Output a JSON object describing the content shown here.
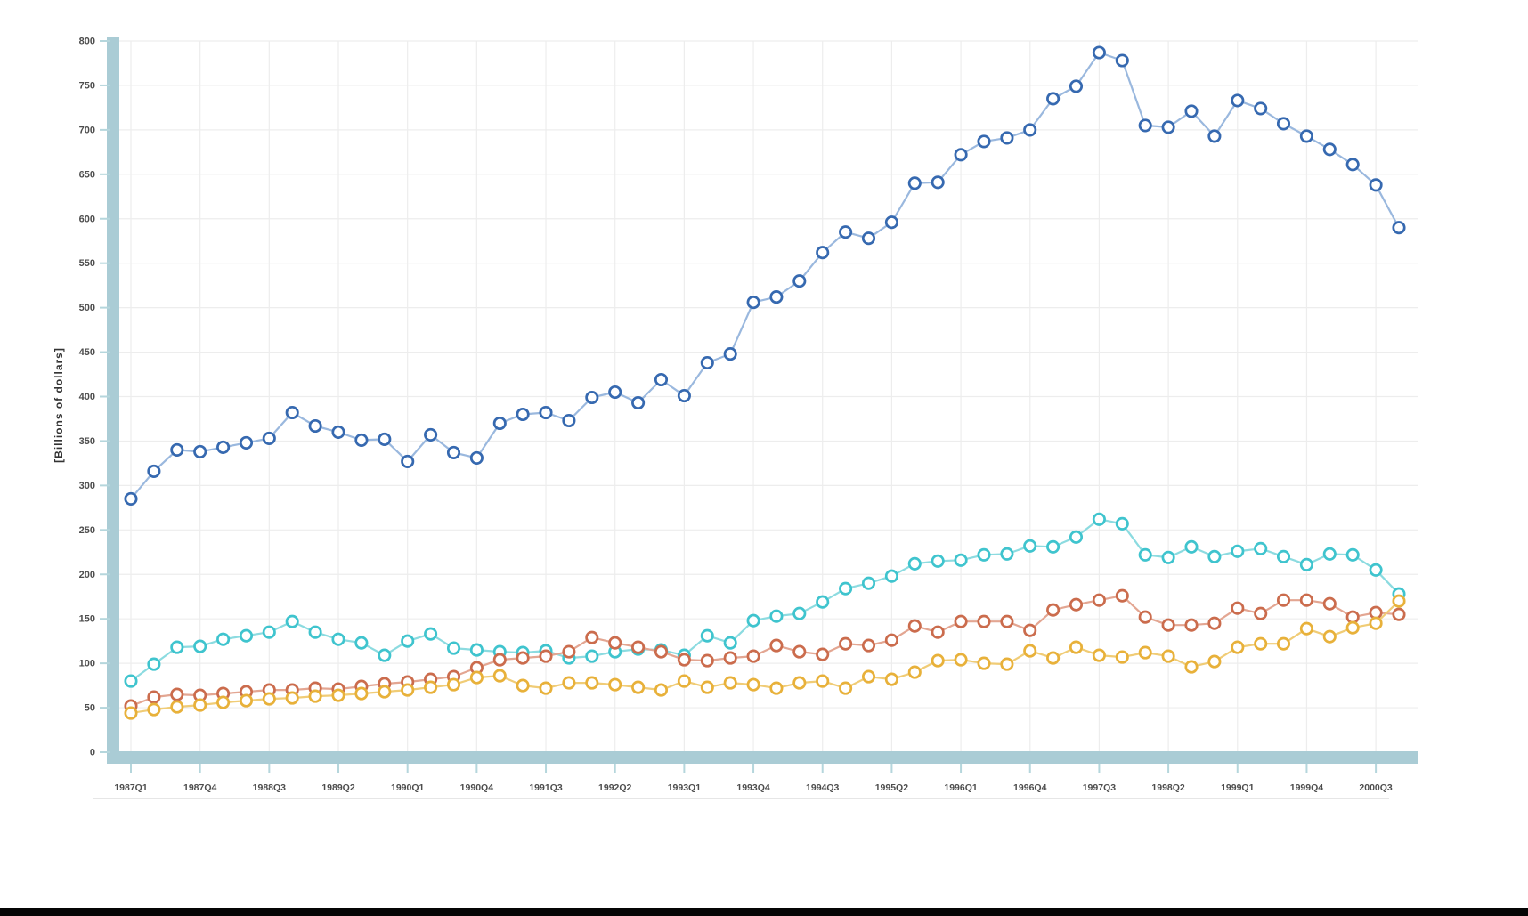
{
  "page": {
    "background": "#ffffff",
    "bottom_bar_color": "#050505"
  },
  "chart_data": {
    "type": "line",
    "title": "",
    "xlabel": "",
    "ylabel": "[Billions of dollars]",
    "ylim": [
      0,
      800
    ],
    "grid": true,
    "legend": "none",
    "marker_style": "open-circle",
    "colors": {
      "axis_band": "#aaccd5",
      "gridline": "#ededed",
      "tick_dash": "#b5d6dc",
      "tick_label": "#4d4d4d",
      "axis_title": "#333333",
      "baseline_rule": "#cccccc"
    },
    "y_ticks": [
      0,
      50,
      100,
      150,
      200,
      250,
      300,
      350,
      400,
      450,
      500,
      550,
      600,
      650,
      700,
      750,
      800
    ],
    "x_tick_labels_shown": [
      "1987Q1",
      "1987Q4",
      "1988Q3",
      "1989Q2",
      "1990Q1",
      "1990Q4",
      "1991Q3",
      "1992Q2",
      "1993Q1",
      "1993Q4",
      "1994Q3",
      "1995Q2",
      "1996Q1",
      "1996Q4",
      "1997Q3",
      "1998Q2",
      "1999Q1",
      "1999Q4",
      "2000Q3"
    ],
    "x_tick_label_step": 3,
    "x": [
      "1987Q1",
      "1987Q2",
      "1987Q3",
      "1987Q4",
      "1988Q1",
      "1988Q2",
      "1988Q3",
      "1988Q4",
      "1989Q1",
      "1989Q2",
      "1989Q3",
      "1989Q4",
      "1990Q1",
      "1990Q2",
      "1990Q3",
      "1990Q4",
      "1991Q1",
      "1991Q2",
      "1991Q3",
      "1991Q4",
      "1992Q1",
      "1992Q2",
      "1992Q3",
      "1992Q4",
      "1993Q1",
      "1993Q2",
      "1993Q3",
      "1993Q4",
      "1994Q1",
      "1994Q2",
      "1994Q3",
      "1994Q4",
      "1995Q1",
      "1995Q2",
      "1995Q3",
      "1995Q4",
      "1996Q1",
      "1996Q2",
      "1996Q3",
      "1996Q4",
      "1997Q1",
      "1997Q2",
      "1997Q3",
      "1997Q4",
      "1998Q1",
      "1998Q2",
      "1998Q3",
      "1998Q4",
      "1999Q1",
      "1999Q2",
      "1999Q3",
      "1999Q4",
      "2000Q1",
      "2000Q2",
      "2000Q3",
      "2000Q4"
    ],
    "series": [
      {
        "name": "series-1-dark-blue",
        "marker_color": "#3669b0",
        "line_color": "#9ab8de",
        "values": [
          285,
          316,
          340,
          338,
          343,
          348,
          353,
          382,
          367,
          360,
          351,
          352,
          327,
          357,
          337,
          331,
          370,
          380,
          382,
          373,
          399,
          405,
          393,
          419,
          401,
          438,
          448,
          506,
          512,
          530,
          562,
          585,
          578,
          596,
          640,
          641,
          672,
          687,
          691,
          700,
          735,
          749,
          787,
          778,
          705,
          703,
          721,
          693,
          733,
          724,
          707,
          693,
          678,
          661,
          638,
          590
        ]
      },
      {
        "name": "series-2-cyan",
        "marker_color": "#3fc4ce",
        "line_color": "#8cdbe0",
        "values": [
          80,
          99,
          118,
          119,
          127,
          131,
          135,
          147,
          135,
          127,
          123,
          109,
          125,
          133,
          117,
          115,
          113,
          112,
          114,
          106,
          108,
          113,
          116,
          115,
          109,
          131,
          123,
          148,
          153,
          156,
          169,
          184,
          190,
          198,
          212,
          215,
          216,
          222,
          223,
          232,
          231,
          242,
          262,
          257,
          222,
          219,
          231,
          220,
          226,
          229,
          220,
          211,
          223,
          222,
          205,
          178
        ]
      },
      {
        "name": "series-3-orange",
        "marker_color": "#cb6c4d",
        "line_color": "#e3a692",
        "values": [
          52,
          62,
          65,
          64,
          66,
          68,
          70,
          70,
          72,
          71,
          74,
          77,
          79,
          82,
          85,
          95,
          104,
          106,
          108,
          113,
          129,
          123,
          118,
          113,
          104,
          103,
          106,
          108,
          120,
          113,
          110,
          122,
          120,
          126,
          142,
          135,
          147,
          147,
          147,
          137,
          160,
          166,
          171,
          176,
          152,
          143,
          143,
          145,
          162,
          156,
          171,
          171,
          167,
          152,
          157,
          155
        ]
      },
      {
        "name": "series-4-gold",
        "marker_color": "#e8b13a",
        "line_color": "#f0cc76",
        "values": [
          44,
          48,
          51,
          53,
          56,
          58,
          60,
          61,
          63,
          64,
          66,
          68,
          70,
          73,
          76,
          84,
          86,
          75,
          72,
          78,
          78,
          76,
          73,
          70,
          80,
          73,
          78,
          76,
          72,
          78,
          80,
          72,
          85,
          82,
          90,
          103,
          104,
          100,
          99,
          114,
          106,
          118,
          109,
          107,
          112,
          108,
          96,
          102,
          118,
          122,
          122,
          139,
          130,
          140,
          145,
          170
        ]
      }
    ]
  }
}
